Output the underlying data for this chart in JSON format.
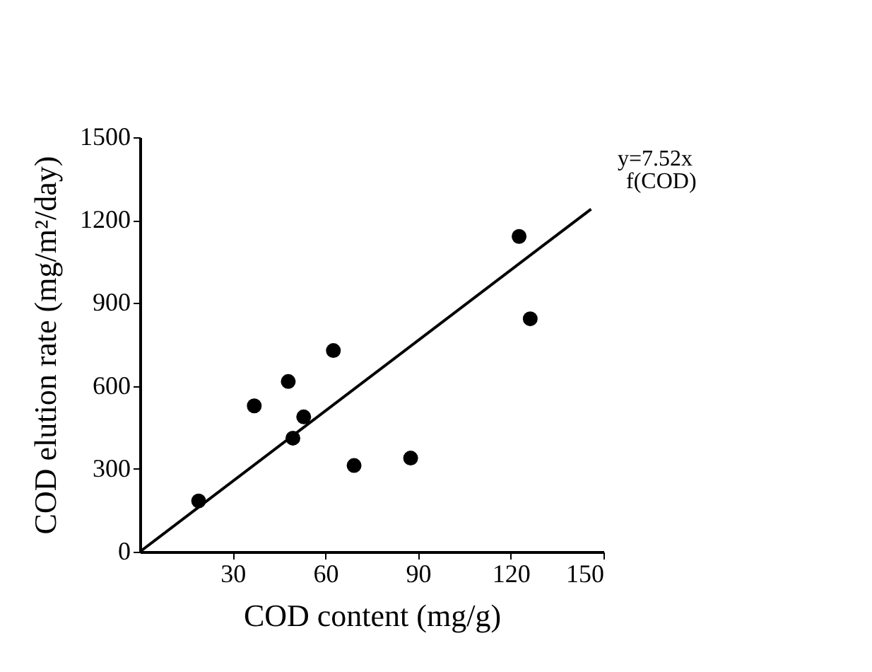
{
  "chart_data": {
    "type": "scatter",
    "xlabel": "COD content (mg/g)",
    "ylabel": "COD elution rate (mg/m²/day)",
    "xlim": [
      0,
      150
    ],
    "xticks": [
      30,
      60,
      90,
      120,
      150
    ],
    "ylim": [
      0,
      1500
    ],
    "yticks": [
      0,
      300,
      600,
      900,
      1200,
      1500
    ],
    "grid": false,
    "marker": "circle",
    "series": [
      {
        "color": "#000000",
        "x": [
          19,
          37,
          48,
          49.5,
          53,
          62.6,
          69.3,
          87.6,
          122.7,
          126.3
        ],
        "values": [
          184,
          528,
          616,
          411,
          488,
          728,
          312,
          339,
          1141,
          843
        ]
      },
      {
        "type": "line",
        "color": "#000000",
        "marker": "none",
        "x": [
          0,
          146
        ],
        "values": [
          0,
          1240
        ]
      }
    ],
    "annotations": [
      "y=7.52x",
      "f(COD)"
    ]
  }
}
